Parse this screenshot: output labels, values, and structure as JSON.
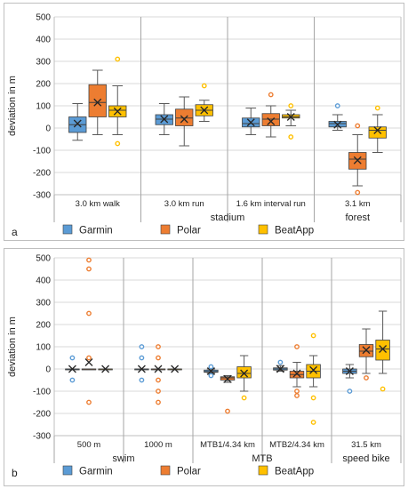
{
  "colors": {
    "Garmin": "#5b9bd5",
    "Polar": "#ed7d31",
    "BeatApp": "#ffc000"
  },
  "chart_data": [
    {
      "type": "box",
      "panel_label": "a",
      "ylabel": "deviation in m",
      "ylim": [
        -300,
        500
      ],
      "yticks": [
        -300,
        -200,
        -100,
        0,
        100,
        200,
        300,
        400,
        500
      ],
      "grid": true,
      "legend": {
        "position": "bottom",
        "entries": [
          "Garmin",
          "Polar",
          "BeatApp"
        ]
      },
      "categories": [
        "3.0 km walk",
        "3.0 km run",
        "1.6 km interval run",
        "3.1 km"
      ],
      "groups": [
        {
          "label": "stadium",
          "span": [
            1,
            2
          ]
        },
        {
          "label": "forest",
          "span": [
            3,
            3
          ]
        }
      ],
      "series": [
        {
          "name": "Garmin",
          "boxes": [
            {
              "min": -55,
              "q1": -20,
              "median": 15,
              "q3": 50,
              "max": 110,
              "mean": 20,
              "outliers": []
            },
            {
              "min": -30,
              "q1": 15,
              "median": 40,
              "q3": 60,
              "max": 110,
              "mean": 40,
              "outliers": []
            },
            {
              "min": -30,
              "q1": 5,
              "median": 20,
              "q3": 45,
              "max": 90,
              "mean": 25,
              "outliers": []
            },
            {
              "min": -10,
              "q1": 5,
              "median": 20,
              "q3": 30,
              "max": 60,
              "mean": 15,
              "outliers": [
                100
              ]
            }
          ]
        },
        {
          "name": "Polar",
          "boxes": [
            {
              "min": -30,
              "q1": 50,
              "median": 115,
              "q3": 195,
              "max": 260,
              "mean": 115,
              "outliers": []
            },
            {
              "min": -80,
              "q1": 10,
              "median": 45,
              "q3": 85,
              "max": 140,
              "mean": 40,
              "outliers": []
            },
            {
              "min": -40,
              "q1": 10,
              "median": 40,
              "q3": 65,
              "max": 100,
              "mean": 30,
              "outliers": [
                150
              ]
            },
            {
              "min": -260,
              "q1": -185,
              "median": -140,
              "q3": -110,
              "max": -30,
              "mean": -145,
              "outliers": [
                -290,
                10
              ]
            }
          ]
        },
        {
          "name": "BeatApp",
          "boxes": [
            {
              "min": -30,
              "q1": 50,
              "median": 80,
              "q3": 100,
              "max": 190,
              "mean": 75,
              "outliers": [
                310,
                -70
              ]
            },
            {
              "min": 30,
              "q1": 55,
              "median": 80,
              "q3": 105,
              "max": 125,
              "mean": 80,
              "outliers": [
                190
              ]
            },
            {
              "min": 10,
              "q1": 45,
              "median": 50,
              "q3": 60,
              "max": 80,
              "mean": 50,
              "outliers": [
                100,
                -40
              ]
            },
            {
              "min": -110,
              "q1": -45,
              "median": -10,
              "q3": 5,
              "max": 60,
              "mean": -10,
              "outliers": [
                90
              ]
            }
          ]
        }
      ]
    },
    {
      "type": "box",
      "panel_label": "b",
      "ylabel": "deviation in m",
      "ylim": [
        -300,
        500
      ],
      "yticks": [
        -300,
        -200,
        -100,
        0,
        100,
        200,
        300,
        400,
        500
      ],
      "grid": true,
      "legend": {
        "position": "bottom",
        "entries": [
          "Garmin",
          "Polar",
          "BeatApp"
        ]
      },
      "categories": [
        "500 m",
        "1000 m",
        "MTB1/4.34 km",
        "MTB2/4.34 km",
        "31.5 km"
      ],
      "groups": [
        {
          "label": "swim",
          "span": [
            0,
            1
          ]
        },
        {
          "label": "MTB",
          "span": [
            2,
            3
          ]
        },
        {
          "label": "speed bike",
          "span": [
            4,
            4
          ]
        }
      ],
      "series": [
        {
          "name": "Garmin",
          "boxes": [
            {
              "min": 0,
              "q1": 0,
              "median": 0,
              "q3": 0,
              "max": 0,
              "mean": 0,
              "outliers": [
                50,
                -50
              ]
            },
            {
              "min": 0,
              "q1": 0,
              "median": 0,
              "q3": 0,
              "max": 0,
              "mean": 0,
              "outliers": [
                100,
                50,
                -50
              ]
            },
            {
              "min": -20,
              "q1": -15,
              "median": -12,
              "q3": -5,
              "max": 0,
              "mean": -10,
              "outliers": [
                10,
                -30
              ]
            },
            {
              "min": -10,
              "q1": -5,
              "median": 0,
              "q3": 5,
              "max": 15,
              "mean": 0,
              "outliers": [
                30
              ]
            },
            {
              "min": -40,
              "q1": -20,
              "median": -10,
              "q3": 0,
              "max": 20,
              "mean": -10,
              "outliers": [
                -100
              ]
            }
          ]
        },
        {
          "name": "Polar",
          "boxes": [
            {
              "min": 0,
              "q1": 0,
              "median": 0,
              "q3": 0,
              "max": 0,
              "mean": 30,
              "outliers": [
                490,
                450,
                250,
                50,
                -150
              ]
            },
            {
              "min": 0,
              "q1": 0,
              "median": 0,
              "q3": 0,
              "max": 0,
              "mean": 0,
              "outliers": [
                100,
                50,
                -50,
                -100,
                -150
              ]
            },
            {
              "min": -60,
              "q1": -50,
              "median": -40,
              "q3": -35,
              "max": -30,
              "mean": -45,
              "outliers": [
                -190
              ]
            },
            {
              "min": -80,
              "q1": -40,
              "median": -25,
              "q3": -10,
              "max": 30,
              "mean": -20,
              "outliers": [
                100,
                -100,
                -120
              ]
            },
            {
              "min": -20,
              "q1": 55,
              "median": 80,
              "q3": 110,
              "max": 180,
              "mean": 85,
              "outliers": [
                -40
              ]
            }
          ]
        },
        {
          "name": "BeatApp",
          "boxes": [
            {
              "min": 0,
              "q1": 0,
              "median": 0,
              "q3": 0,
              "max": 0,
              "mean": 0,
              "outliers": []
            },
            {
              "min": 0,
              "q1": 0,
              "median": 0,
              "q3": 0,
              "max": 0,
              "mean": 0,
              "outliers": []
            },
            {
              "min": -100,
              "q1": -40,
              "median": -20,
              "q3": 10,
              "max": 60,
              "mean": -20,
              "outliers": [
                -130
              ]
            },
            {
              "min": -80,
              "q1": -40,
              "median": -10,
              "q3": 20,
              "max": 60,
              "mean": -5,
              "outliers": [
                150,
                -130,
                -240
              ]
            },
            {
              "min": -20,
              "q1": 40,
              "median": 90,
              "q3": 130,
              "max": 260,
              "mean": 90,
              "outliers": [
                -90
              ]
            }
          ]
        }
      ]
    }
  ]
}
